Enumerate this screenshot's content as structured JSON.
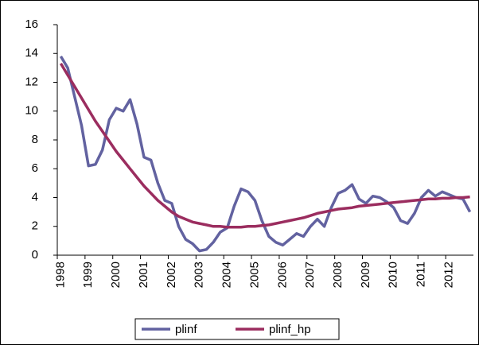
{
  "chart_data": {
    "type": "line",
    "categories": [
      "1998",
      null,
      null,
      null,
      "1999",
      null,
      null,
      null,
      "2000",
      null,
      null,
      null,
      "2001",
      null,
      null,
      null,
      "2002",
      null,
      null,
      null,
      "2003",
      null,
      null,
      null,
      "2004",
      null,
      null,
      null,
      "2005",
      null,
      null,
      null,
      "2006",
      null,
      null,
      null,
      "2007",
      null,
      null,
      null,
      "2008",
      null,
      null,
      null,
      "2009",
      null,
      null,
      null,
      "2010",
      null,
      null,
      null,
      "2011",
      null,
      null,
      null,
      "2012",
      null,
      null,
      null
    ],
    "series": [
      {
        "name": "plinf",
        "color": "#6262a0",
        "values": [
          13.8,
          13.0,
          11.0,
          9.0,
          6.2,
          6.3,
          7.3,
          9.4,
          10.2,
          10.0,
          10.8,
          9.1,
          6.8,
          6.6,
          5.0,
          3.8,
          3.6,
          2.0,
          1.1,
          0.8,
          0.3,
          0.4,
          0.9,
          1.6,
          1.9,
          3.4,
          4.6,
          4.4,
          3.8,
          2.4,
          1.3,
          0.9,
          0.7,
          1.1,
          1.5,
          1.3,
          2.0,
          2.5,
          2.0,
          3.3,
          4.3,
          4.5,
          4.9,
          3.9,
          3.6,
          4.1,
          4.0,
          3.7,
          3.3,
          2.4,
          2.2,
          2.9,
          4.0,
          4.5,
          4.1,
          4.4,
          4.2,
          4.0,
          3.9,
          3.0
        ]
      },
      {
        "name": "plinf_hp",
        "color": "#9b2d5f",
        "values": [
          13.3,
          12.5,
          11.7,
          10.9,
          10.1,
          9.3,
          8.6,
          7.9,
          7.2,
          6.6,
          6.0,
          5.4,
          4.8,
          4.3,
          3.8,
          3.4,
          3.0,
          2.7,
          2.5,
          2.3,
          2.2,
          2.1,
          2.0,
          2.0,
          1.95,
          1.95,
          1.95,
          2.0,
          2.0,
          2.05,
          2.1,
          2.2,
          2.3,
          2.4,
          2.5,
          2.6,
          2.75,
          2.9,
          3.0,
          3.1,
          3.2,
          3.25,
          3.3,
          3.4,
          3.45,
          3.5,
          3.55,
          3.6,
          3.65,
          3.7,
          3.75,
          3.8,
          3.85,
          3.9,
          3.9,
          3.95,
          3.95,
          4.0,
          4.0,
          4.05
        ]
      }
    ],
    "ylim": [
      0,
      16
    ],
    "yticks": [
      0,
      2,
      4,
      6,
      8,
      10,
      12,
      14,
      16
    ],
    "grid": false,
    "legend": "bottom"
  }
}
